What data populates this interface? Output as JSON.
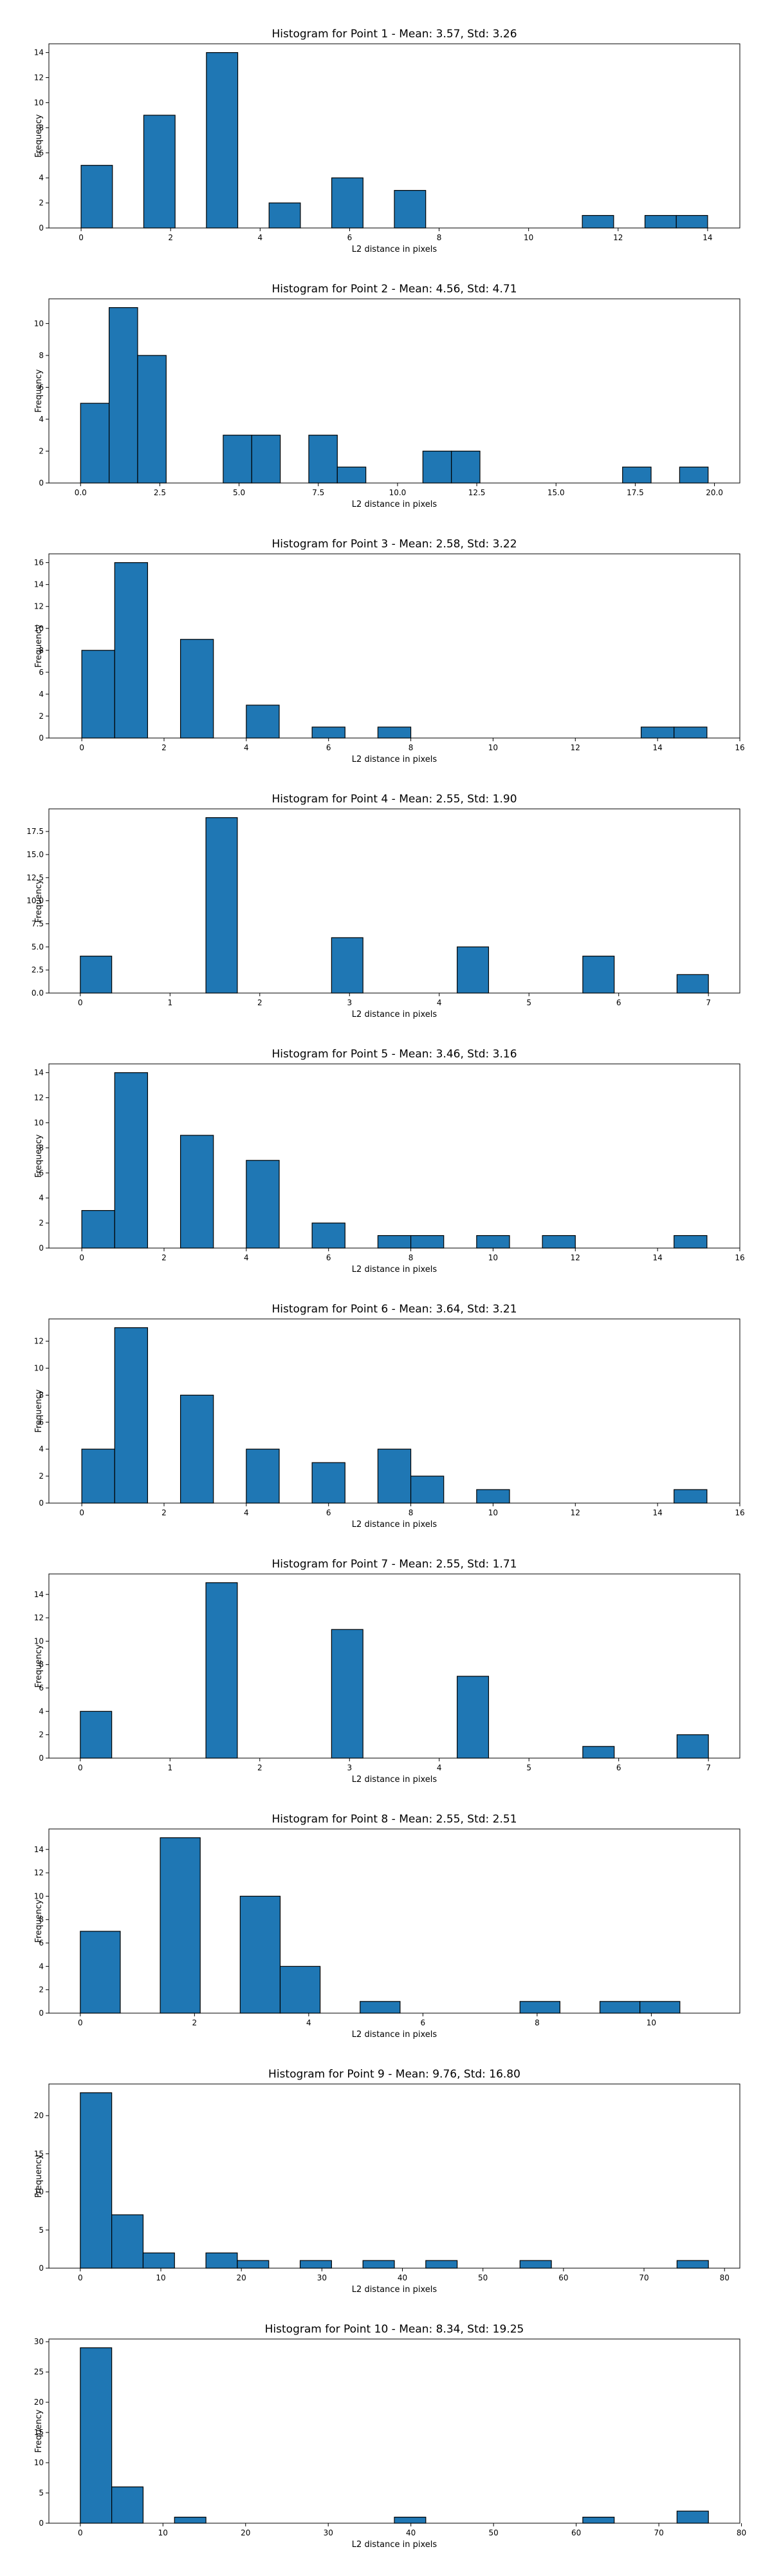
{
  "colors": {
    "bar_fill": "#1f77b4",
    "bar_edge": "#000000",
    "axis": "#000000"
  },
  "chart_data": [
    {
      "type": "bar",
      "title": "Histogram for Point 1 - Mean: 3.57, Std: 3.26",
      "xlabel": "L2 distance in pixels",
      "ylabel": "Frequency",
      "xlim": [
        -0.72,
        14.72
      ],
      "ylim": [
        0,
        14.7
      ],
      "xticks": [
        0,
        2,
        4,
        6,
        8,
        10,
        12,
        14
      ],
      "yticks": [
        0,
        2,
        4,
        6,
        8,
        10,
        12,
        14
      ],
      "bin_edges": [
        0,
        0.7,
        1.4,
        2.1,
        2.8,
        3.5,
        4.2,
        4.9,
        5.6,
        6.3,
        7.0,
        7.7,
        8.4,
        9.1,
        9.8,
        10.5,
        11.2,
        11.9,
        12.6,
        13.3,
        14.0
      ],
      "counts": [
        5,
        0,
        9,
        0,
        14,
        0,
        2,
        0,
        4,
        0,
        3,
        0,
        0,
        0,
        0,
        0,
        1,
        0,
        1,
        1
      ]
    },
    {
      "type": "bar",
      "title": "Histogram for Point 2 - Mean: 4.56, Std: 4.71",
      "xlabel": "L2 distance in pixels",
      "ylabel": "Frequency",
      "xlim": [
        -1.0,
        20.8
      ],
      "ylim": [
        0,
        11.55
      ],
      "xticks": [
        0.0,
        2.5,
        5.0,
        7.5,
        10.0,
        12.5,
        15.0,
        17.5,
        20.0
      ],
      "xtick_labels": [
        "0.0",
        "2.5",
        "5.0",
        "7.5",
        "10.0",
        "12.5",
        "15.0",
        "17.5",
        "20.0"
      ],
      "yticks": [
        0,
        2,
        4,
        6,
        8,
        10
      ],
      "bin_edges": [
        0,
        0.9,
        1.8,
        2.7,
        3.6,
        4.5,
        5.4,
        6.3,
        7.2,
        8.1,
        9.0,
        9.9,
        10.8,
        11.7,
        12.6,
        13.5,
        14.4,
        15.3,
        16.2,
        17.1,
        18.0,
        18.9,
        19.8
      ],
      "counts": [
        5,
        11,
        8,
        0,
        0,
        3,
        3,
        0,
        3,
        1,
        0,
        0,
        2,
        2,
        0,
        0,
        0,
        0,
        0,
        1,
        0,
        1
      ]
    },
    {
      "type": "bar",
      "title": "Histogram for Point 3 - Mean: 2.58, Std: 3.22",
      "xlabel": "L2 distance in pixels",
      "ylabel": "Frequency",
      "xlim": [
        -0.8,
        16.0
      ],
      "ylim": [
        0,
        16.8
      ],
      "xticks": [
        0,
        2,
        4,
        6,
        8,
        10,
        12,
        14,
        16
      ],
      "yticks": [
        0,
        2,
        4,
        6,
        8,
        10,
        12,
        14,
        16
      ],
      "bin_edges": [
        0,
        0.8,
        1.6,
        2.4,
        3.2,
        4.0,
        4.8,
        5.6,
        6.4,
        7.2,
        8.0,
        8.8,
        9.6,
        10.4,
        11.2,
        12.0,
        12.8,
        13.6,
        14.4,
        15.2
      ],
      "counts": [
        8,
        16,
        0,
        9,
        0,
        3,
        0,
        1,
        0,
        1,
        0,
        0,
        0,
        0,
        0,
        0,
        0,
        1,
        1
      ]
    },
    {
      "type": "bar",
      "title": "Histogram for Point 4 - Mean: 2.55, Std: 1.90",
      "xlabel": "L2 distance in pixels",
      "ylabel": "Frequency",
      "xlim": [
        -0.35,
        7.35
      ],
      "ylim": [
        0,
        19.95
      ],
      "xticks": [
        0,
        1,
        2,
        3,
        4,
        5,
        6,
        7
      ],
      "yticks": [
        0.0,
        2.5,
        5.0,
        7.5,
        10.0,
        12.5,
        15.0,
        17.5
      ],
      "ytick_labels": [
        "0.0",
        "2.5",
        "5.0",
        "7.5",
        "10.0",
        "12.5",
        "15.0",
        "17.5"
      ],
      "bin_edges": [
        0,
        0.35,
        0.7,
        1.05,
        1.4,
        1.75,
        2.1,
        2.45,
        2.8,
        3.15,
        3.5,
        3.85,
        4.2,
        4.55,
        4.9,
        5.25,
        5.6,
        5.95,
        6.3,
        6.65,
        7.0
      ],
      "counts": [
        4,
        0,
        0,
        0,
        19,
        0,
        0,
        0,
        6,
        0,
        0,
        0,
        5,
        0,
        0,
        0,
        4,
        0,
        0,
        2
      ]
    },
    {
      "type": "bar",
      "title": "Histogram for Point 5 - Mean: 3.46, Std: 3.16",
      "xlabel": "L2 distance in pixels",
      "ylabel": "Frequency",
      "xlim": [
        -0.8,
        16.0
      ],
      "ylim": [
        0,
        14.7
      ],
      "xticks": [
        0,
        2,
        4,
        6,
        8,
        10,
        12,
        14,
        16
      ],
      "yticks": [
        0,
        2,
        4,
        6,
        8,
        10,
        12,
        14
      ],
      "bin_edges": [
        0,
        0.8,
        1.6,
        2.4,
        3.2,
        4.0,
        4.8,
        5.6,
        6.4,
        7.2,
        8.0,
        8.8,
        9.6,
        10.4,
        11.2,
        12.0,
        12.8,
        13.6,
        14.4,
        15.2
      ],
      "counts": [
        3,
        14,
        0,
        9,
        0,
        7,
        0,
        2,
        0,
        1,
        1,
        0,
        1,
        0,
        1,
        0,
        0,
        0,
        1
      ]
    },
    {
      "type": "bar",
      "title": "Histogram for Point 6 - Mean: 3.64, Std: 3.21",
      "xlabel": "L2 distance in pixels",
      "ylabel": "Frequency",
      "xlim": [
        -0.8,
        16.0
      ],
      "ylim": [
        0,
        13.65
      ],
      "xticks": [
        0,
        2,
        4,
        6,
        8,
        10,
        12,
        14,
        16
      ],
      "yticks": [
        0,
        2,
        4,
        6,
        8,
        10,
        12
      ],
      "bin_edges": [
        0,
        0.8,
        1.6,
        2.4,
        3.2,
        4.0,
        4.8,
        5.6,
        6.4,
        7.2,
        8.0,
        8.8,
        9.6,
        10.4,
        11.2,
        12.0,
        12.8,
        13.6,
        14.4,
        15.2
      ],
      "counts": [
        4,
        13,
        0,
        8,
        0,
        4,
        0,
        3,
        0,
        4,
        2,
        0,
        1,
        0,
        0,
        0,
        0,
        0,
        1
      ]
    },
    {
      "type": "bar",
      "title": "Histogram for Point 7 - Mean: 2.55, Std: 1.71",
      "xlabel": "L2 distance in pixels",
      "ylabel": "Frequency",
      "xlim": [
        -0.35,
        7.35
      ],
      "ylim": [
        0,
        15.75
      ],
      "xticks": [
        0,
        1,
        2,
        3,
        4,
        5,
        6,
        7
      ],
      "yticks": [
        0,
        2,
        4,
        6,
        8,
        10,
        12,
        14
      ],
      "bin_edges": [
        0,
        0.35,
        0.7,
        1.05,
        1.4,
        1.75,
        2.1,
        2.45,
        2.8,
        3.15,
        3.5,
        3.85,
        4.2,
        4.55,
        4.9,
        5.25,
        5.6,
        5.95,
        6.3,
        6.65,
        7.0
      ],
      "counts": [
        4,
        0,
        0,
        0,
        15,
        0,
        0,
        0,
        11,
        0,
        0,
        0,
        7,
        0,
        0,
        0,
        1,
        0,
        0,
        2
      ]
    },
    {
      "type": "bar",
      "title": "Histogram for Point 8 - Mean: 2.55, Std: 2.51",
      "xlabel": "L2 distance in pixels",
      "ylabel": "Frequency",
      "xlim": [
        -0.55,
        11.55
      ],
      "ylim": [
        0,
        15.75
      ],
      "xticks": [
        0,
        2,
        4,
        6,
        8,
        10
      ],
      "yticks": [
        0,
        2,
        4,
        6,
        8,
        10,
        12,
        14
      ],
      "bin_edges": [
        0,
        0.7,
        1.4,
        2.1,
        2.8,
        3.5,
        4.2,
        4.9,
        5.6,
        6.3,
        7.0,
        7.7,
        8.4,
        9.1,
        9.8,
        10.5,
        11.2
      ],
      "counts": [
        7,
        0,
        15,
        0,
        10,
        4,
        0,
        1,
        0,
        0,
        0,
        1,
        0,
        1,
        1,
        0
      ]
    },
    {
      "type": "bar",
      "title": "Histogram for Point 9 - Mean: 9.76, Std: 16.80",
      "xlabel": "L2 distance in pixels",
      "ylabel": "Frequency",
      "xlim": [
        -3.9,
        81.9
      ],
      "ylim": [
        0,
        24.15
      ],
      "xticks": [
        0,
        10,
        20,
        30,
        40,
        50,
        60,
        70,
        80
      ],
      "yticks": [
        0,
        5,
        10,
        15,
        20
      ],
      "bin_edges": [
        0,
        3.9,
        7.8,
        11.7,
        15.6,
        19.5,
        23.4,
        27.3,
        31.2,
        35.1,
        39.0,
        42.9,
        46.8,
        50.7,
        54.6,
        58.5,
        62.4,
        66.3,
        70.2,
        74.1,
        78.0
      ],
      "counts": [
        23,
        7,
        2,
        0,
        2,
        1,
        0,
        1,
        0,
        1,
        0,
        1,
        0,
        0,
        1,
        0,
        0,
        0,
        0,
        1
      ]
    },
    {
      "type": "bar",
      "title": "Histogram for Point 10 - Mean: 8.34, Std: 19.25",
      "xlabel": "L2 distance in pixels",
      "ylabel": "Frequency",
      "xlim": [
        -3.8,
        79.8
      ],
      "ylim": [
        0,
        30.45
      ],
      "xticks": [
        0,
        10,
        20,
        30,
        40,
        50,
        60,
        70,
        80
      ],
      "yticks": [
        0,
        5,
        10,
        15,
        20,
        25,
        30
      ],
      "bin_edges": [
        0,
        3.8,
        7.6,
        11.4,
        15.2,
        19.0,
        22.8,
        26.6,
        30.4,
        34.2,
        38.0,
        41.8,
        45.6,
        49.4,
        53.2,
        57.0,
        60.8,
        64.6,
        68.4,
        72.2,
        76.0
      ],
      "counts": [
        29,
        6,
        0,
        1,
        0,
        0,
        0,
        0,
        0,
        0,
        1,
        0,
        0,
        0,
        0,
        0,
        1,
        0,
        0,
        2
      ]
    }
  ]
}
